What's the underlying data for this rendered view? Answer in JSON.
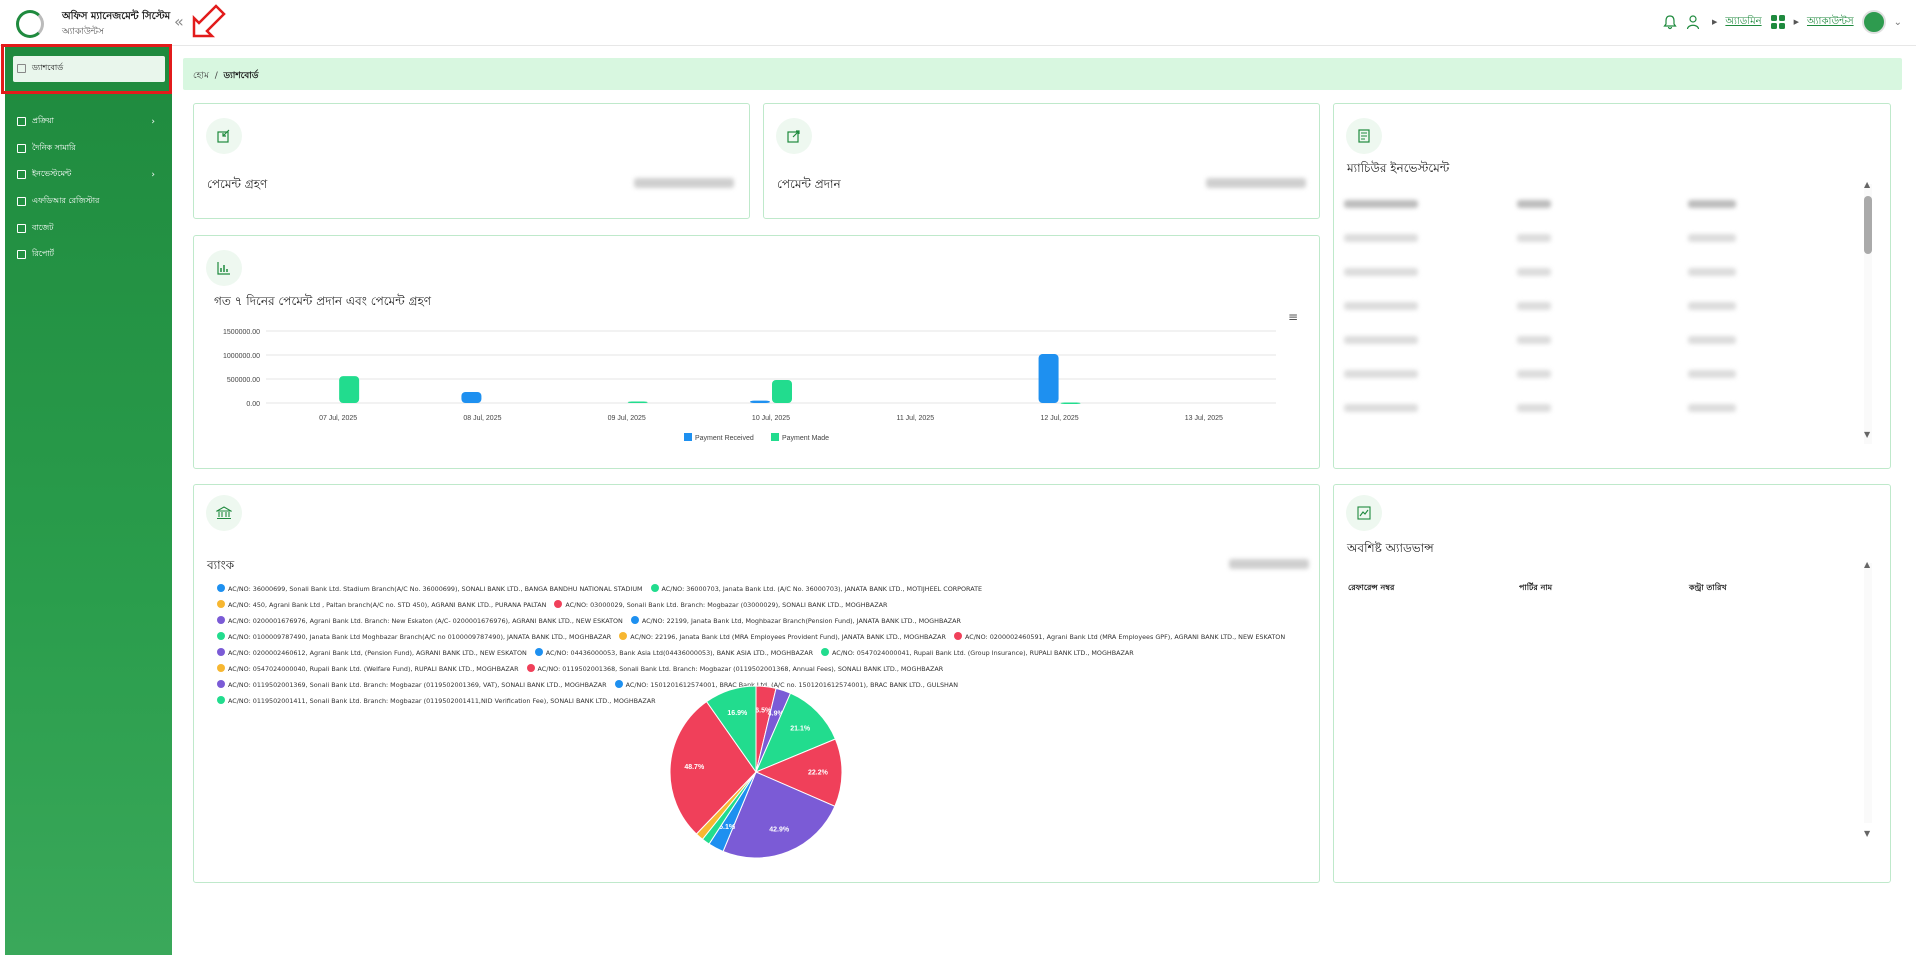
{
  "header": {
    "brand_title": "অফিস ম্যানেজমেন্ট সিস্টেম",
    "brand_sub": "অ্যাকাউন্টস",
    "collapse_icon": "«",
    "user_role": "অ্যাডমিন",
    "module_label": "অ্যাকাউন্টস"
  },
  "sidebar": {
    "items": [
      {
        "label": "ড্যাশবোর্ড"
      },
      {
        "label": "প্রক্রিয়া"
      },
      {
        "label": "দৈনিক সামারি"
      },
      {
        "label": "ইনভেস্টমেন্ট"
      },
      {
        "label": "এফডিআর রেজিস্টার"
      },
      {
        "label": "বাজেট"
      },
      {
        "label": "রিপোর্ট"
      }
    ]
  },
  "breadcrumb": {
    "home": "হোম",
    "sep": "/",
    "current": "ড্যাশবোর্ড"
  },
  "cards": {
    "payment_received_title": "পেমেন্ট গ্রহণ",
    "payment_made_title": "পেমেন্ট প্রদান",
    "maturity_title": "ম্যাচিউর ইনভেস্টমেন্ট",
    "bank_title": "ব্যাংক",
    "advance_title": "অবশিষ্ট অ্যাডভান্স"
  },
  "advance_table": {
    "headers": [
      "রেফারেন্স নম্বর",
      "পার্টির নাম",
      "কন্ট্রা তারিখ"
    ]
  },
  "chart_data": [
    {
      "type": "bar",
      "title": "গত ৭ দিনের পেমেন্ট প্রদান এবং পেমেন্ট গ্রহণ",
      "categories": [
        "07 Jul, 2025",
        "08 Jul, 2025",
        "09 Jul, 2025",
        "10 Jul, 2025",
        "11 Jul, 2025",
        "12 Jul, 2025",
        "13 Jul, 2025"
      ],
      "series": [
        {
          "name": "Payment Received",
          "color": "#1e90f0",
          "values": [
            0,
            230000,
            0,
            50000,
            0,
            1020000,
            0
          ]
        },
        {
          "name": "Payment Made",
          "color": "#22dc8e",
          "values": [
            560000,
            0,
            30000,
            480000,
            0,
            10000,
            0
          ]
        }
      ],
      "yticks": [
        "0.00",
        "500000.00",
        "1000000.00",
        "1500000.00"
      ],
      "ylim": [
        0,
        1500000
      ],
      "legend": "bottom",
      "grid": true
    },
    {
      "type": "pie",
      "slices": [
        {
          "label": "6.5%",
          "value": 6.5,
          "color": "#f0405a"
        },
        {
          "label": "4.9%",
          "value": 4.9,
          "color": "#7b5bd6"
        },
        {
          "label": "21.1%",
          "value": 21.1,
          "color": "#22dc8e"
        },
        {
          "label": "22.2%",
          "value": 22.2,
          "color": "#f0405a"
        },
        {
          "label": "42.9%",
          "value": 42.9,
          "color": "#7b5bd6"
        },
        {
          "label": "5.1%",
          "value": 5.1,
          "color": "#1e90f0"
        },
        {
          "label": "",
          "value": 2.6,
          "color": "#22dc8e"
        },
        {
          "label": "",
          "value": 2.6,
          "color": "#f7b731"
        },
        {
          "label": "48.7%",
          "value": 48.7,
          "color": "#f0405a"
        },
        {
          "label": "16.9%",
          "value": 16.9,
          "color": "#22dc8e"
        }
      ],
      "legend_entries": [
        {
          "text": "AC/NO: 36000699, Sonali Bank Ltd. Stadium Branch(A/C No. 36000699), SONALI BANK LTD., BANGA BANDHU NATIONAL STADIUM",
          "color": "#1e90f0"
        },
        {
          "text": "AC/NO: 36000703, Janata Bank Ltd. (A/C No. 36000703), JANATA BANK LTD., MOTIJHEEL CORPORATE",
          "color": "#22dc8e"
        },
        {
          "text": "AC/NO: 450, Agrani Bank Ltd , Paltan branch(A/C no. STD 450), AGRANI BANK LTD., PURANA PALTAN",
          "color": "#f7b731"
        },
        {
          "text": "AC/NO: 03000029, Sonali Bank Ltd. Branch: Mogbazar (03000029), SONALI BANK LTD., MOGHBAZAR",
          "color": "#f0405a"
        },
        {
          "text": "AC/NO: 0200001676976, Agrani Bank Ltd. Branch: New Eskaton (A/C- 0200001676976), AGRANI BANK LTD., NEW ESKATON",
          "color": "#7b5bd6"
        },
        {
          "text": "AC/NO: 22199, Janata Bank Ltd, Moghbazar Branch(Pension Fund), JANATA BANK LTD., MOGHBAZAR",
          "color": "#1e90f0"
        },
        {
          "text": "AC/NO: 0100009787490, Janata Bank Ltd Moghbazar Branch(A/C no 0100009787490), JANATA BANK LTD., MOGHBAZAR",
          "color": "#22dc8e"
        },
        {
          "text": "AC/NO: 22196, Janata Bank Ltd (MRA Employees Provident Fund), JANATA BANK LTD., MOGHBAZAR",
          "color": "#f7b731"
        },
        {
          "text": "AC/NO: 0200002460591, Agrani Bank Ltd (MRA Employees GPF), AGRANI BANK LTD., NEW ESKATON",
          "color": "#f0405a"
        },
        {
          "text": "AC/NO: 0200002460612, Agrani Bank Ltd, (Pension Fund), AGRANI BANK LTD., NEW ESKATON",
          "color": "#7b5bd6"
        },
        {
          "text": "AC/NO: 04436000053, Bank Asia Ltd(04436000053), BANK ASIA LTD., MOGHBAZAR",
          "color": "#1e90f0"
        },
        {
          "text": "AC/NO: 0547024000041, Rupali Bank Ltd. (Group Insurance), RUPALI BANK LTD., MOGHBAZAR",
          "color": "#22dc8e"
        },
        {
          "text": "AC/NO: 0547024000040, Rupali Bank Ltd. (Welfare Fund), RUPALI BANK LTD., MOGHBAZAR",
          "color": "#f7b731"
        },
        {
          "text": "AC/NO: 0119502001368, Sonali Bank Ltd. Branch: Mogbazar (0119502001368, Annual Fees), SONALI BANK LTD., MOGHBAZAR",
          "color": "#f0405a"
        },
        {
          "text": "AC/NO: 0119502001369, Sonali Bank Ltd. Branch: Mogbazar (0119502001369, VAT), SONALI BANK LTD., MOGHBAZAR",
          "color": "#7b5bd6"
        },
        {
          "text": "AC/NO: 1501201612574001, BRAC Bank Ltd. (A/C no. 1501201612574001), BRAC BANK LTD., GULSHAN",
          "color": "#1e90f0"
        },
        {
          "text": "AC/NO: 0119502001411, Sonali Bank Ltd. Branch: Mogbazar (0119502001411,NID Verification Fee), SONALI BANK LTD., MOGHBAZAR",
          "color": "#22dc8e"
        }
      ]
    }
  ]
}
